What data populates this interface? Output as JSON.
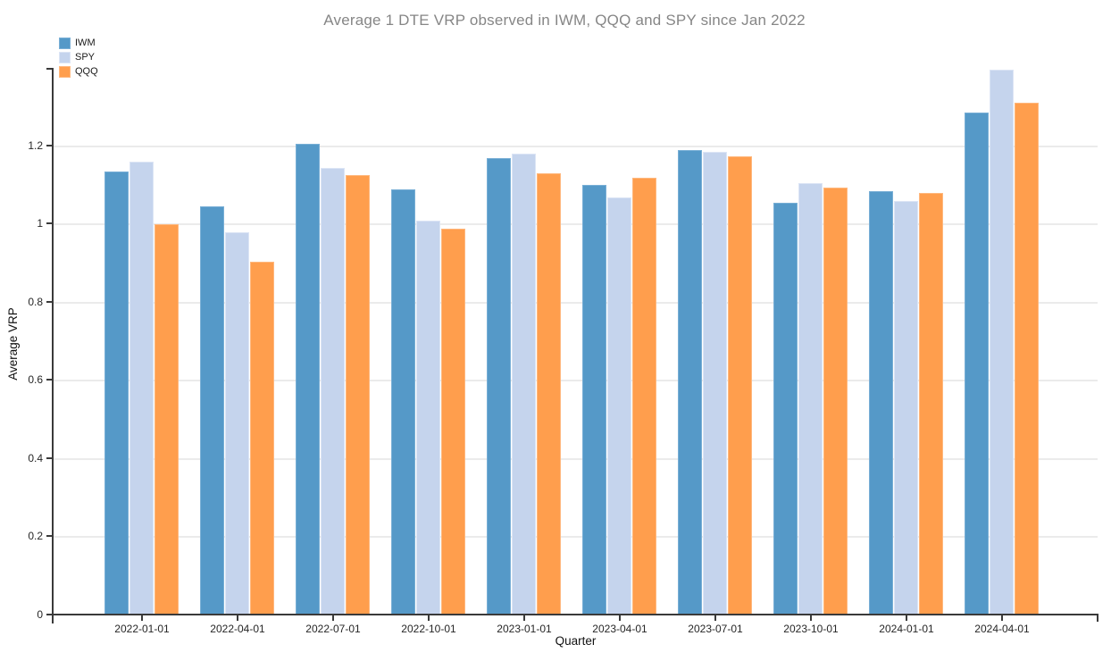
{
  "chart_data": {
    "type": "bar",
    "title": "Average 1 DTE VRP observed in IWM, QQQ and SPY since Jan 2022",
    "xlabel": "Quarter",
    "ylabel": "Average VRP",
    "categories": [
      "2022-01-01",
      "2022-04-01",
      "2022-07-01",
      "2022-10-01",
      "2023-01-01",
      "2023-04-01",
      "2023-07-01",
      "2023-10-01",
      "2024-01-01",
      "2024-04-01"
    ],
    "series": [
      {
        "name": "IWM",
        "color": "#5599C8",
        "edge_color": "#79AFD6",
        "values": [
          1.135,
          1.045,
          1.205,
          1.09,
          1.17,
          1.1,
          1.19,
          1.055,
          1.085,
          1.285
        ]
      },
      {
        "name": "SPY",
        "color": "#C5D4ED",
        "edge_color": "#DCE5F5",
        "values": [
          1.16,
          0.98,
          1.145,
          1.01,
          1.18,
          1.07,
          1.185,
          1.105,
          1.06,
          1.395
        ]
      },
      {
        "name": "QQQ",
        "color": "#FF9E4D",
        "edge_color": "#FFB87E",
        "values": [
          1.0,
          0.905,
          1.125,
          0.99,
          1.13,
          1.12,
          1.175,
          1.095,
          1.08,
          1.31
        ]
      }
    ],
    "ylim": [
      0,
      1.4
    ],
    "yticks": [
      0,
      0.2,
      0.4,
      0.6,
      0.8,
      1,
      1.2
    ],
    "ytick_labels": [
      "0",
      "0.2",
      "0.4",
      "0.6",
      "0.8",
      "1",
      "1.2"
    ],
    "grid": true,
    "legend_position": "top-left",
    "colors": {
      "axis": "#3a3a3a",
      "grid": "#ebebeb",
      "title": "#868686",
      "tick_label": "#262626",
      "axis_label": "#111111",
      "background": "#ffffff"
    }
  }
}
